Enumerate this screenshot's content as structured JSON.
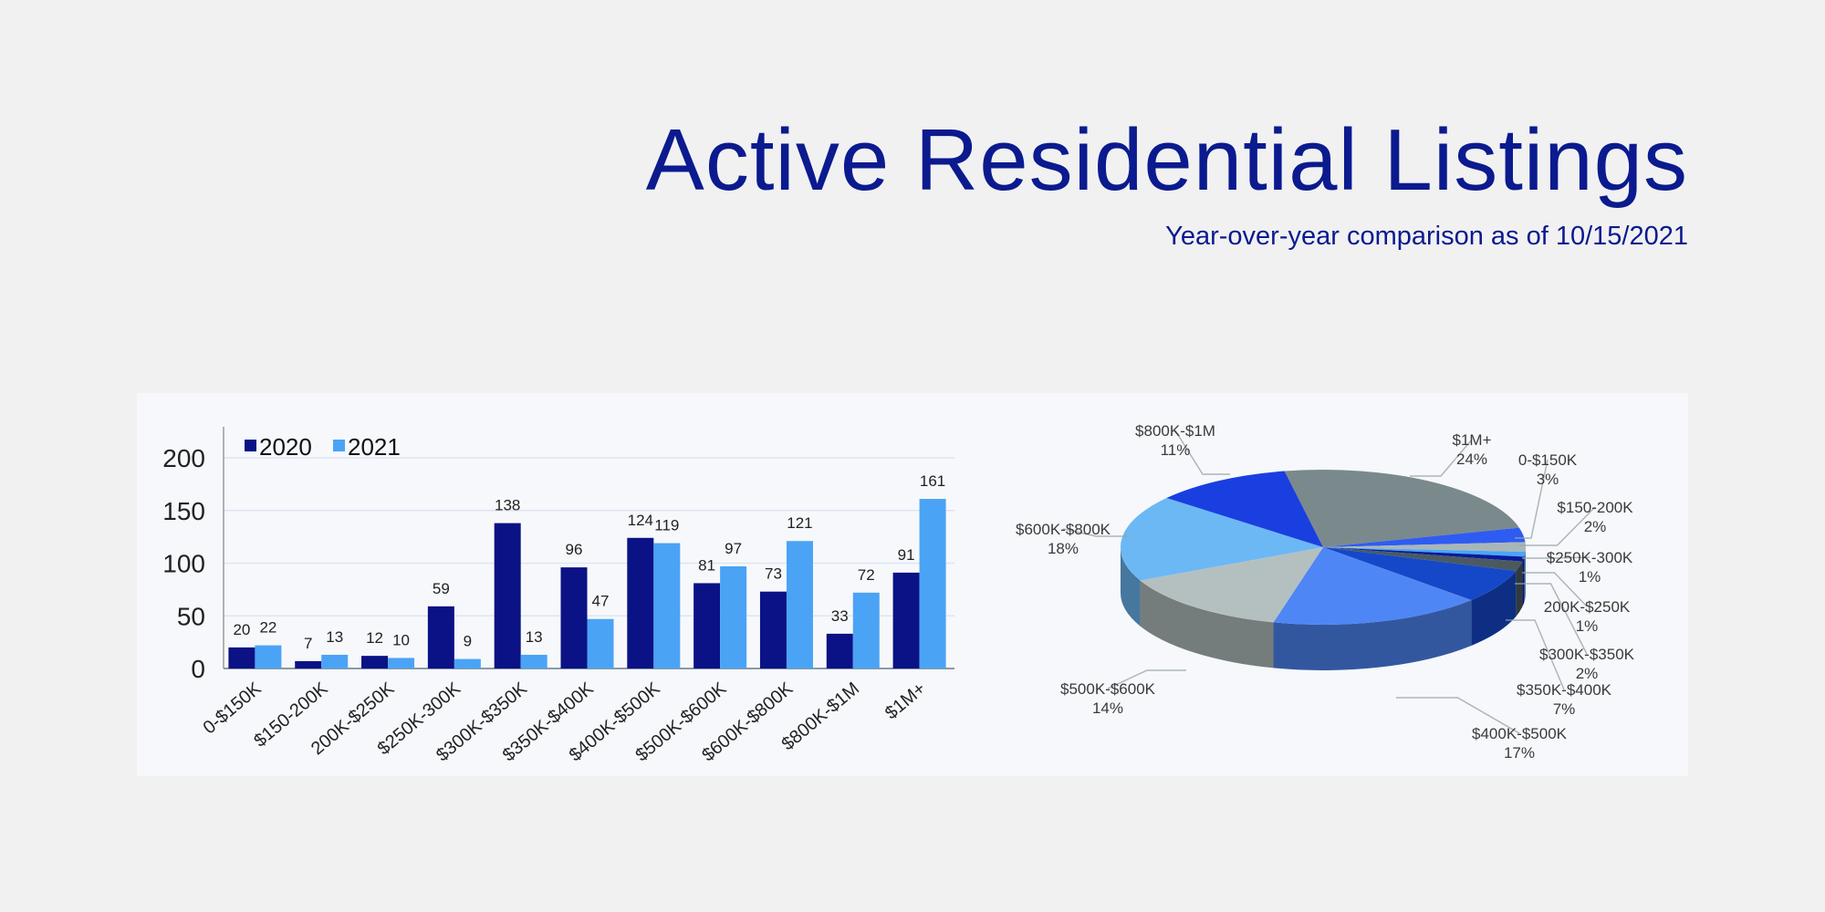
{
  "header": {
    "title": "Active Residential Listings",
    "subtitle": "Year-over-year comparison as of 10/15/2021"
  },
  "chart_data": [
    {
      "type": "bar",
      "categories": [
        "0-$150K",
        "$150-200K",
        "200K-$250K",
        "$250K-300K",
        "$300K-$350K",
        "$350K-$400K",
        "$400K-$500K",
        "$500K-$600K",
        "$600K-$800K",
        "$800K-$1M",
        "$1M+"
      ],
      "series": [
        {
          "name": "2020",
          "color": "#0a1285",
          "values": [
            20,
            7,
            12,
            59,
            138,
            96,
            124,
            81,
            73,
            33,
            91
          ]
        },
        {
          "name": "2021",
          "color": "#4ba3f5",
          "values": [
            22,
            13,
            10,
            9,
            13,
            47,
            119,
            97,
            121,
            72,
            161
          ]
        }
      ],
      "yticks": [
        "0",
        "50",
        "100",
        "150",
        "200"
      ],
      "ylim": [
        0,
        200
      ],
      "grid": true,
      "legend": "top-left",
      "xlabel": "",
      "ylabel": ""
    },
    {
      "type": "pie",
      "slices": [
        {
          "label": "$1M+",
          "pct": "24%",
          "value": 24,
          "color": "#7a8a8c"
        },
        {
          "label": "0-$150K",
          "pct": "3%",
          "value": 3,
          "color": "#2f5cf0"
        },
        {
          "label": "$150-200K",
          "pct": "2%",
          "value": 2,
          "color": "#a9b6b8"
        },
        {
          "label": "$250K-300K",
          "pct": "1%",
          "value": 1,
          "color": "#4aa6f7"
        },
        {
          "label": "200K-$250K",
          "pct": "1%",
          "value": 1,
          "color": "#0a1a9a"
        },
        {
          "label": "$300K-$350K",
          "pct": "2%",
          "value": 2,
          "color": "#4b5a60"
        },
        {
          "label": "$350K-$400K",
          "pct": "7%",
          "value": 7,
          "color": "#1448c8"
        },
        {
          "label": "$400K-$500K",
          "pct": "17%",
          "value": 17,
          "color": "#4f86f5"
        },
        {
          "label": "$500K-$600K",
          "pct": "14%",
          "value": 14,
          "color": "#b4c0c0"
        },
        {
          "label": "$600K-$800K",
          "pct": "18%",
          "value": 18,
          "color": "#6cb8f5"
        },
        {
          "label": "$800K-$1M",
          "pct": "11%",
          "value": 11,
          "color": "#1a3fe0"
        }
      ]
    }
  ]
}
